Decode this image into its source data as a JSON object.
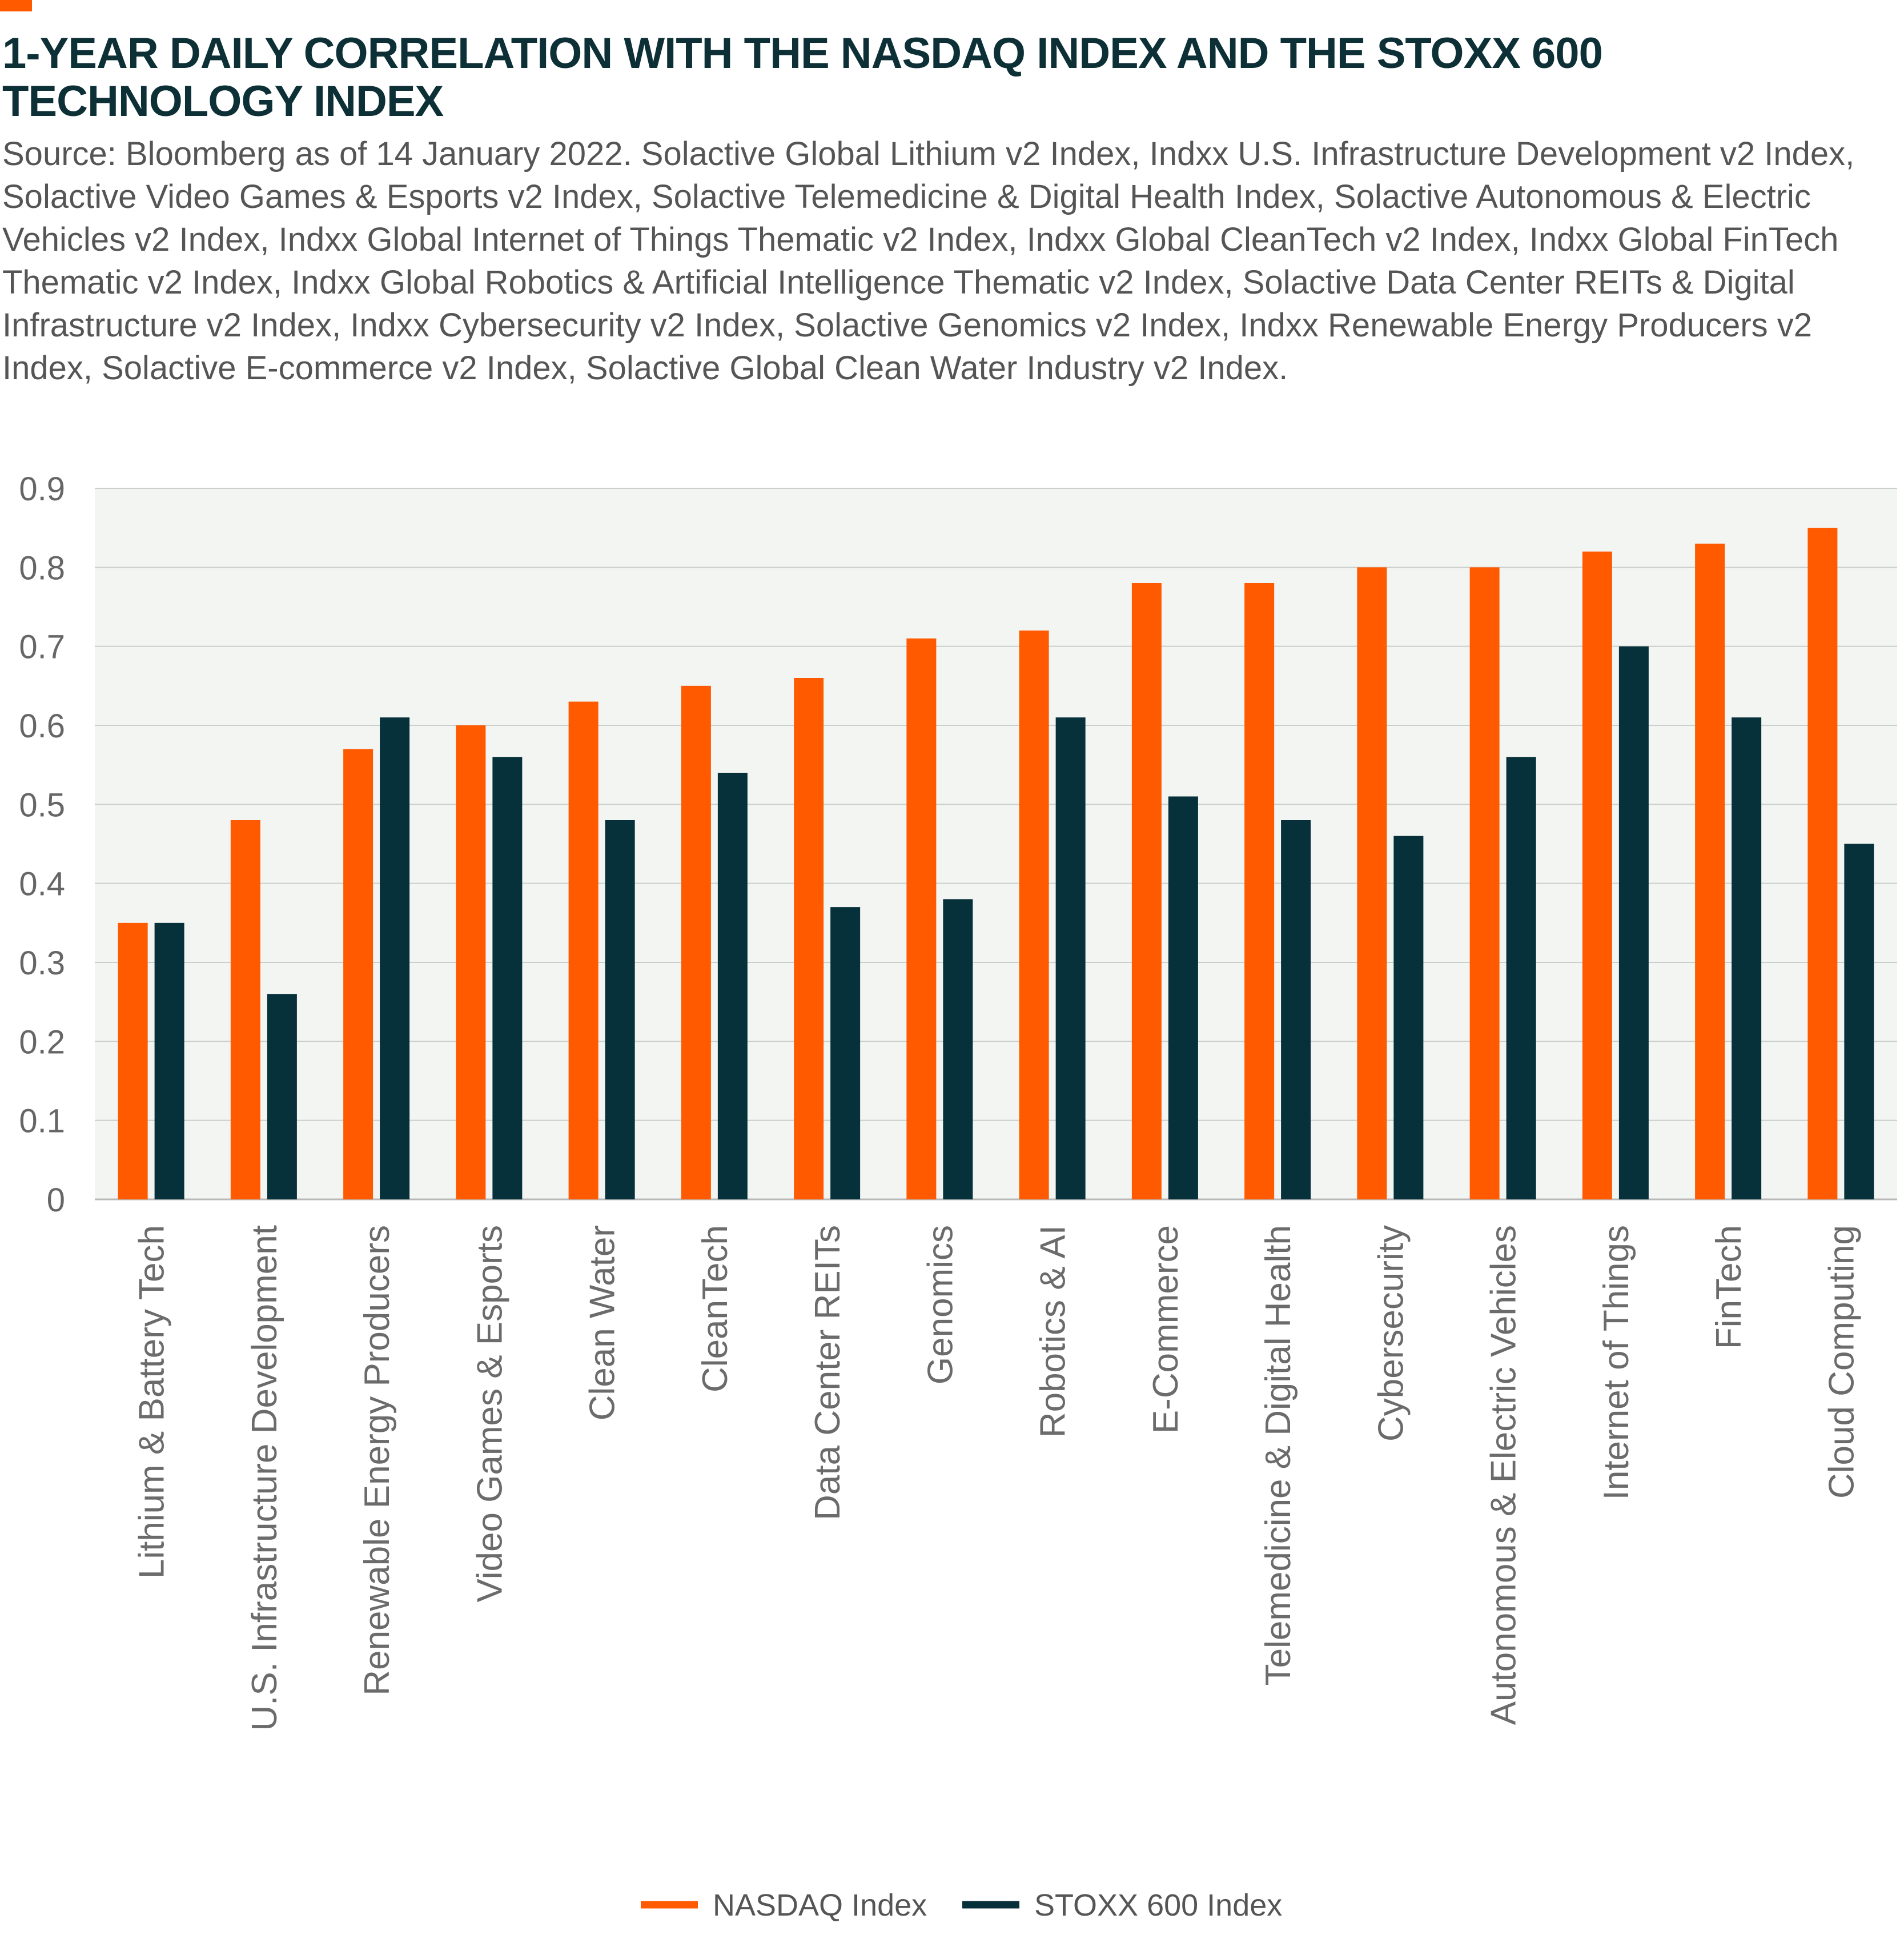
{
  "accent_color": "#ff5a00",
  "title": "1-YEAR DAILY CORRELATION WITH THE NASDAQ INDEX AND THE STOXX 600 TECHNOLOGY INDEX",
  "source": "Source: Bloomberg as of 14 January 2022. Solactive Global Lithium v2 Index, Indxx U.S. Infrastructure Development v2 Index, Solactive Video Games & Esports v2 Index, Solactive Telemedicine & Digital Health Index, Solactive Autonomous & Electric Vehicles v2 Index, Indxx Global Internet of Things Thematic v2 Index, Indxx Global CleanTech v2 Index, Indxx Global FinTech Thematic v2 Index, Indxx Global Robotics & Artificial Intelligence Thematic v2 Index, Solactive Data Center REITs & Digital Infrastructure v2 Index, Indxx Cybersecurity v2 Index, Solactive Genomics v2 Index, Indxx Renewable Energy Producers v2 Index, Solactive E-commerce v2 Index, Solactive Global Clean Water Industry v2 Index.",
  "chart_data": {
    "type": "bar",
    "ylim": [
      0,
      0.9
    ],
    "yticks": [
      "0",
      "0.1",
      "0.2",
      "0.3",
      "0.4",
      "0.5",
      "0.6",
      "0.7",
      "0.8",
      "0.9"
    ],
    "grid": true,
    "plot_background": "#f3f5f3",
    "legend_position": "bottom",
    "categories": [
      "Lithium & Battery Tech",
      "U.S. Infrastructure Development",
      "Renewable Energy Producers",
      "Video Games & Esports",
      "Clean Water",
      "CleanTech",
      "Data Center REITs",
      "Genomics",
      "Robotics & AI",
      "E-Commerce",
      "Telemedicine & Digital Health",
      "Cybersecurity",
      "Autonomous & Electric Vehicles",
      "Internet of Things",
      "FinTech",
      "Cloud Computing"
    ],
    "series": [
      {
        "name": "NASDAQ Index",
        "color": "#ff5a00",
        "values": [
          0.35,
          0.48,
          0.57,
          0.6,
          0.63,
          0.65,
          0.66,
          0.71,
          0.72,
          0.78,
          0.78,
          0.8,
          0.8,
          0.82,
          0.83,
          0.85
        ]
      },
      {
        "name": "STOXX 600 Index",
        "color": "#06303a",
        "values": [
          0.35,
          0.26,
          0.61,
          0.56,
          0.48,
          0.54,
          0.37,
          0.38,
          0.61,
          0.51,
          0.48,
          0.46,
          0.56,
          0.7,
          0.61,
          0.45
        ]
      }
    ]
  }
}
